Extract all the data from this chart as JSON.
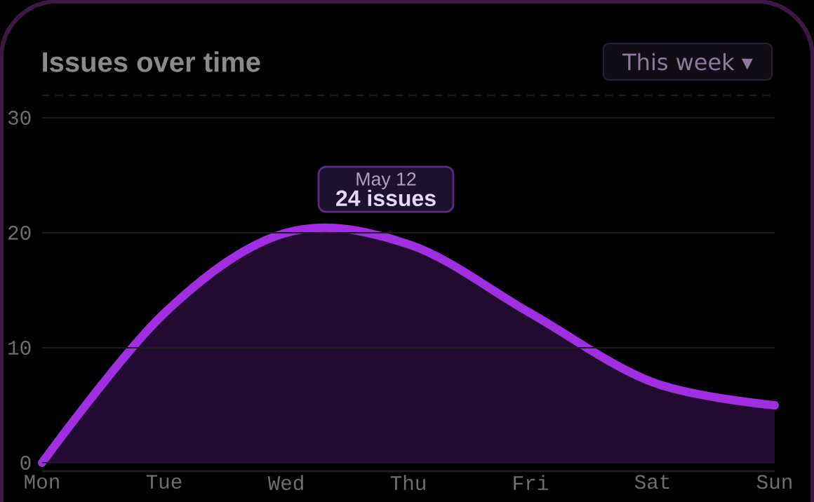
{
  "chart_data": {
    "type": "area",
    "title": "Issues over time",
    "categories": [
      "Mon",
      "Tue",
      "Wed",
      "Thu",
      "Fri",
      "Sat",
      "Sun"
    ],
    "series": [
      {
        "color": "#a12ee0",
        "values": [
          0,
          13,
          20,
          19,
          13,
          7,
          5
        ]
      }
    ],
    "ylim": [
      0,
      30
    ],
    "yticks": [
      0,
      10,
      20,
      30
    ],
    "grid": "y",
    "annotations": [
      "This week ▾",
      "May 12",
      "24 issues"
    ]
  }
}
